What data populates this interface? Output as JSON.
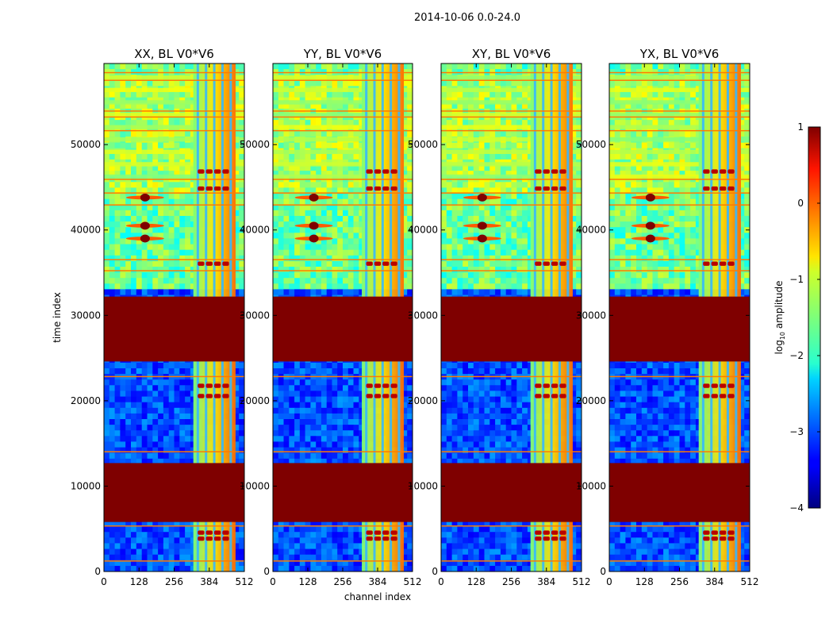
{
  "chart_data": {
    "type": "heatmap",
    "suptitle": "2014-10-06 0.0-24.0",
    "panels": [
      {
        "title": "XX, BL V0*V6"
      },
      {
        "title": "YY, BL V0*V6"
      },
      {
        "title": "XY, BL V0*V6"
      },
      {
        "title": "YX, BL V0*V6"
      }
    ],
    "xlabel": "channel index",
    "ylabel": "time index",
    "xlim": [
      0,
      512
    ],
    "ylim": [
      0,
      59500
    ],
    "xticks": [
      0,
      128,
      256,
      384,
      512
    ],
    "yticks": [
      0,
      10000,
      20000,
      30000,
      40000,
      50000
    ],
    "colorbar": {
      "label": "log",
      "label_sub": "10",
      "label_rest": " amplitude",
      "range": [
        -4,
        1
      ],
      "ticks": [
        1,
        0,
        -1,
        -2,
        -3,
        -4
      ],
      "colormap": "jet"
    },
    "saturated_time_bands": [
      [
        5800,
        12700
      ],
      [
        24600,
        32200
      ]
    ],
    "bright_channel_range": [
      326,
      480
    ],
    "rfi_source_rows": [
      39000,
      40500,
      43800
    ]
  }
}
